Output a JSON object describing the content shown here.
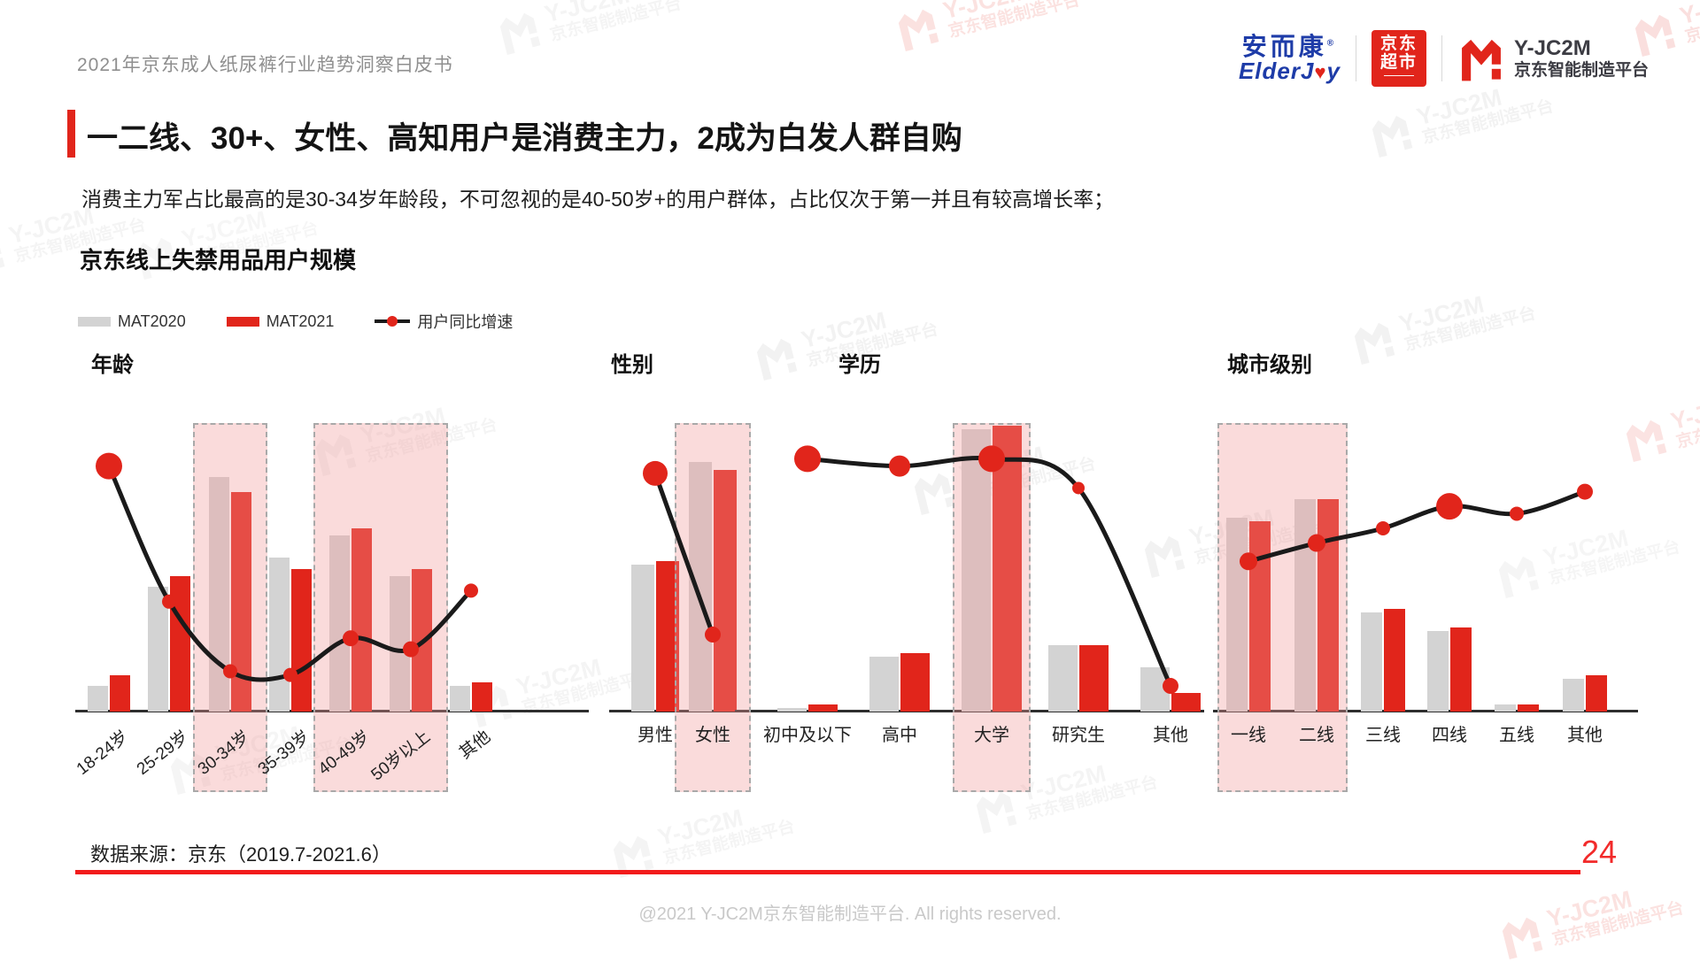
{
  "page": {
    "doc_title": "2021年京东成人纸尿裤行业趋势洞察白皮书",
    "source": "数据来源：京东（2019.7-2021.6）",
    "page_number": "24",
    "footer": "@2021 Y-JC2M京东智能制造平台. All rights reserved."
  },
  "brand": {
    "elderjoy_cn": "安而康",
    "elderjoy_reg": "®",
    "elderjoy_en_pre": "ElderJ",
    "elderjoy_heart": "♥",
    "elderjoy_en_post": "y",
    "jd_market_line1": "京东",
    "jd_market_line2": "超市",
    "yjc2m": "Y-JC2M",
    "yjc2m_platform": "京东智能制造平台"
  },
  "headline": {
    "title": "一二线、30+、女性、高知用户是消费主力，2成为白发人群自购",
    "subtitle": "消费主力军占比最高的是30-34岁年龄段，不可忽视的是40-50岁+的用户群体，占比仅次于第一并且有较高增长率；",
    "section_title": "京东线上失禁用品用户规模"
  },
  "legend": [
    {
      "label": "MAT2020",
      "type": "bar",
      "color": "#d3d3d3"
    },
    {
      "label": "MAT2021",
      "type": "bar",
      "color": "#e1251b"
    },
    {
      "label": "用户同比增速",
      "type": "line",
      "color": "#1a1a1a"
    }
  ],
  "colors": {
    "accent_red": "#e1251b",
    "bar_2020": "#d3d3d3",
    "bar_2021": "#e1251b",
    "line": "#1a1a1a",
    "highlight_fill": "rgba(242,153,153,0.35)",
    "highlight_border": "#a9a9a9",
    "bottom_rule_red": "#f21b1b",
    "logo_blue": "#1e3ca8"
  },
  "chart_data": [
    {
      "type": "bar+line",
      "title": "年龄",
      "categories": [
        "18-24岁",
        "25-29岁",
        "30-34岁",
        "35-39岁",
        "40-49岁",
        "50岁以上",
        "其他"
      ],
      "series": [
        {
          "name": "MAT2020",
          "values": [
            7,
            34,
            64,
            42,
            48,
            37,
            7
          ]
        },
        {
          "name": "MAT2021",
          "values": [
            10,
            37,
            60,
            39,
            50,
            39,
            8
          ]
        },
        {
          "name": "用户同比增速",
          "values": [
            67,
            30,
            11,
            10,
            20,
            17,
            33
          ],
          "dot_radii": [
            15,
            8,
            8,
            8,
            9,
            9,
            8
          ]
        }
      ],
      "highlight_groups": [
        [
          2
        ],
        [
          4,
          5
        ]
      ],
      "value_note": "relative scale 0-100, no numeric axis shown in source",
      "legend_position": "top-left",
      "grid": false
    },
    {
      "type": "bar+line",
      "title": "性别",
      "categories": [
        "男性",
        "女性"
      ],
      "series": [
        {
          "name": "MAT2020",
          "values": [
            40,
            68
          ]
        },
        {
          "name": "MAT2021",
          "values": [
            41,
            66
          ]
        },
        {
          "name": "用户同比增速",
          "values": [
            65,
            21
          ],
          "dot_radii": [
            14,
            9
          ]
        }
      ],
      "highlight_groups": [
        [
          1
        ]
      ],
      "value_note": "relative scale 0-100, no numeric axis shown in source",
      "grid": false
    },
    {
      "type": "bar+line",
      "title": "学历",
      "categories": [
        "初中及以下",
        "高中",
        "大学",
        "研究生",
        "其他"
      ],
      "series": [
        {
          "name": "MAT2020",
          "values": [
            1,
            15,
            77,
            18,
            12
          ]
        },
        {
          "name": "MAT2021",
          "values": [
            2,
            16,
            78,
            18,
            5
          ]
        },
        {
          "name": "用户同比增速",
          "values": [
            69,
            67,
            69,
            61,
            7
          ],
          "dot_radii": [
            15,
            12,
            15,
            7,
            9
          ]
        }
      ],
      "highlight_groups": [
        [
          2
        ]
      ],
      "value_note": "relative scale 0-100, no numeric axis shown in source",
      "grid": false
    },
    {
      "type": "bar+line",
      "title": "城市级别",
      "categories": [
        "一线",
        "二线",
        "三线",
        "四线",
        "五线",
        "其他"
      ],
      "series": [
        {
          "name": "MAT2020",
          "values": [
            53,
            58,
            27,
            22,
            2,
            9
          ]
        },
        {
          "name": "MAT2021",
          "values": [
            52,
            58,
            28,
            23,
            2,
            10
          ]
        },
        {
          "name": "用户同比增速",
          "values": [
            41,
            46,
            50,
            56,
            54,
            60
          ],
          "dot_radii": [
            10,
            10,
            8,
            15,
            8,
            9
          ]
        }
      ],
      "highlight_groups": [
        [
          0,
          1
        ]
      ],
      "value_note": "relative scale 0-100, no numeric axis shown in source",
      "grid": false
    }
  ]
}
